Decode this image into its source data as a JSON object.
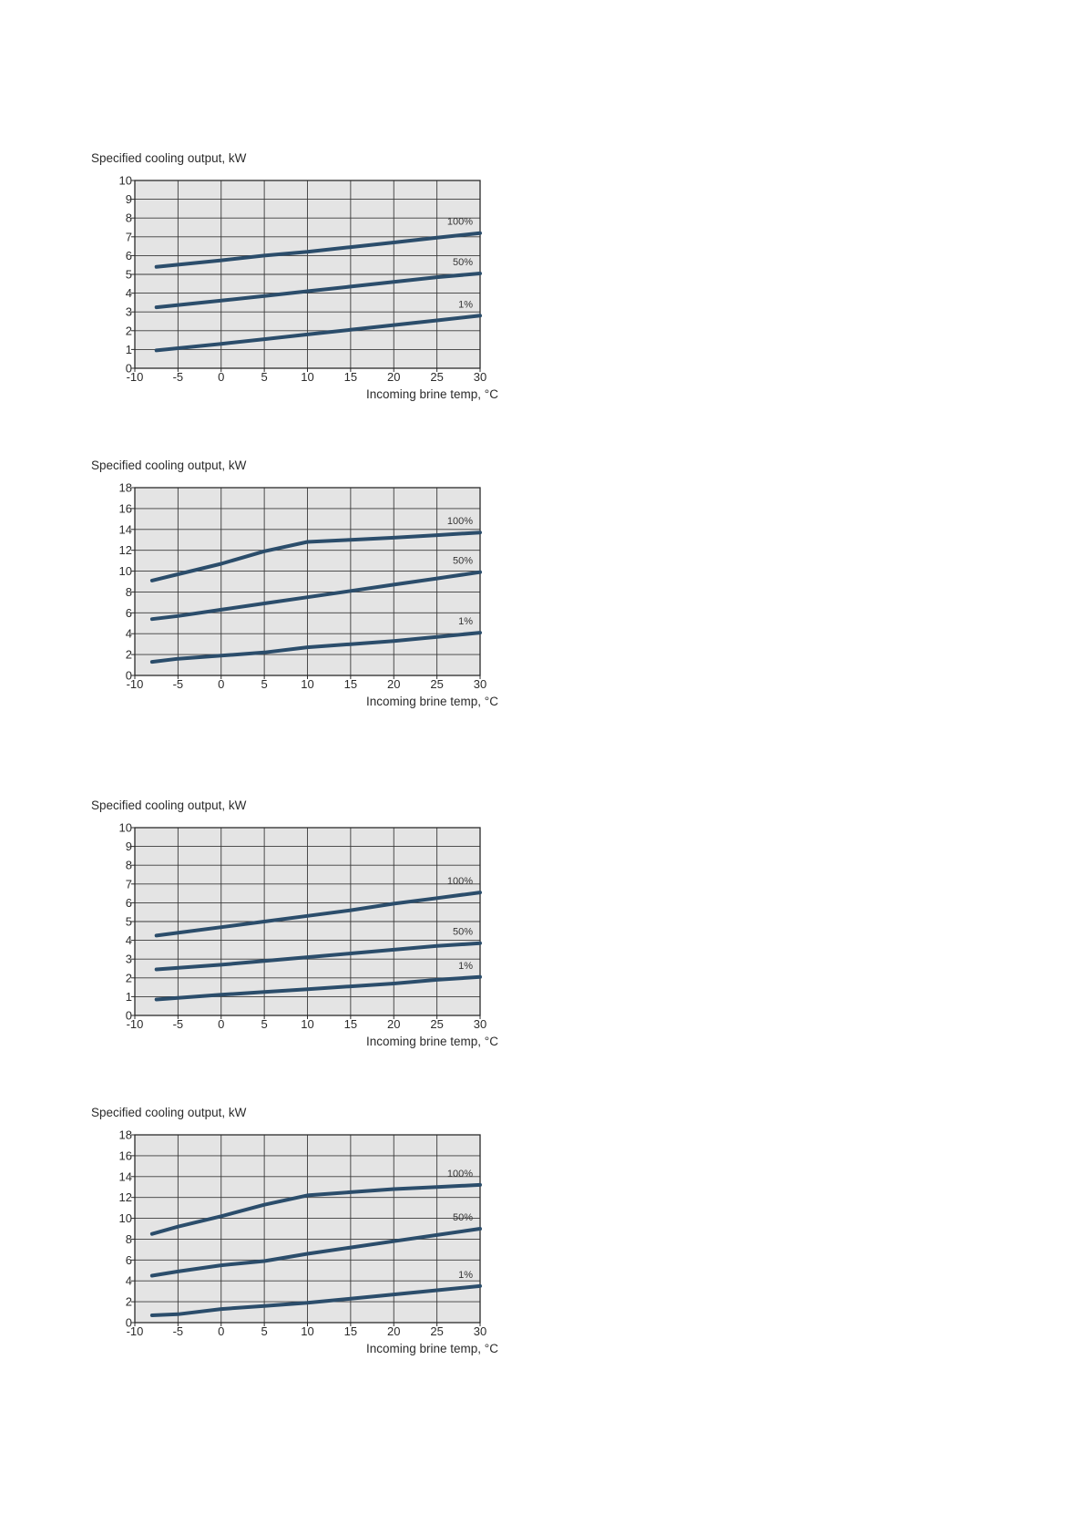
{
  "chart_data": [
    {
      "type": "line",
      "ylabel": "Specified cooling output, kW",
      "xlabel": "Incoming brine temp, °C",
      "xlim": [
        -10,
        30
      ],
      "ylim": [
        0,
        10
      ],
      "xticks": [
        -10,
        -5,
        0,
        5,
        10,
        15,
        20,
        25,
        30
      ],
      "yticks": [
        0,
        1,
        2,
        3,
        4,
        5,
        6,
        7,
        8,
        9,
        10
      ],
      "grid": true,
      "series": [
        {
          "name": "100%",
          "x": [
            -7.5,
            0,
            5,
            10,
            15,
            20,
            25,
            30
          ],
          "y": [
            5.4,
            5.75,
            6.0,
            6.2,
            6.45,
            6.7,
            6.95,
            7.2
          ]
        },
        {
          "name": "50%",
          "x": [
            -7.5,
            0,
            5,
            10,
            15,
            20,
            25,
            30
          ],
          "y": [
            3.25,
            3.6,
            3.85,
            4.1,
            4.35,
            4.6,
            4.85,
            5.05
          ]
        },
        {
          "name": "1%",
          "x": [
            -7.5,
            0,
            5,
            10,
            15,
            20,
            25,
            30
          ],
          "y": [
            0.95,
            1.3,
            1.55,
            1.8,
            2.05,
            2.3,
            2.55,
            2.8
          ]
        }
      ]
    },
    {
      "type": "line",
      "ylabel": "Specified cooling output, kW",
      "xlabel": "Incoming brine temp, °C",
      "xlim": [
        -10,
        30
      ],
      "ylim": [
        0,
        18
      ],
      "xticks": [
        -10,
        -5,
        0,
        5,
        10,
        15,
        20,
        25,
        30
      ],
      "yticks": [
        0,
        2,
        4,
        6,
        8,
        10,
        12,
        14,
        16,
        18
      ],
      "grid": true,
      "series": [
        {
          "name": "100%",
          "x": [
            -8,
            -5,
            0,
            5,
            10,
            15,
            20,
            25,
            30
          ],
          "y": [
            9.1,
            9.7,
            10.7,
            11.9,
            12.8,
            13.0,
            13.2,
            13.45,
            13.7
          ]
        },
        {
          "name": "50%",
          "x": [
            -8,
            -5,
            0,
            5,
            10,
            15,
            20,
            25,
            30
          ],
          "y": [
            5.4,
            5.7,
            6.3,
            6.9,
            7.5,
            8.1,
            8.7,
            9.3,
            9.9
          ]
        },
        {
          "name": "1%",
          "x": [
            -8,
            -5,
            0,
            5,
            10,
            15,
            20,
            25,
            30
          ],
          "y": [
            1.3,
            1.6,
            1.9,
            2.2,
            2.7,
            3.0,
            3.3,
            3.7,
            4.1
          ]
        }
      ]
    },
    {
      "type": "line",
      "ylabel": "Specified cooling output, kW",
      "xlabel": "Incoming brine temp, °C",
      "xlim": [
        -10,
        30
      ],
      "ylim": [
        0,
        10
      ],
      "xticks": [
        -10,
        -5,
        0,
        5,
        10,
        15,
        20,
        25,
        30
      ],
      "yticks": [
        0,
        1,
        2,
        3,
        4,
        5,
        6,
        7,
        8,
        9,
        10
      ],
      "grid": true,
      "series": [
        {
          "name": "100%",
          "x": [
            -7.5,
            0,
            5,
            10,
            15,
            20,
            25,
            30
          ],
          "y": [
            4.25,
            4.7,
            5.0,
            5.3,
            5.6,
            5.95,
            6.25,
            6.55
          ]
        },
        {
          "name": "50%",
          "x": [
            -7.5,
            0,
            5,
            10,
            15,
            20,
            25,
            30
          ],
          "y": [
            2.45,
            2.7,
            2.9,
            3.1,
            3.3,
            3.5,
            3.7,
            3.85
          ]
        },
        {
          "name": "1%",
          "x": [
            -7.5,
            0,
            5,
            10,
            15,
            20,
            25,
            30
          ],
          "y": [
            0.85,
            1.1,
            1.25,
            1.4,
            1.55,
            1.7,
            1.9,
            2.05
          ]
        }
      ]
    },
    {
      "type": "line",
      "ylabel": "Specified cooling output, kW",
      "xlabel": "Incoming brine temp, °C",
      "xlim": [
        -10,
        30
      ],
      "ylim": [
        0,
        18
      ],
      "xticks": [
        -10,
        -5,
        0,
        5,
        10,
        15,
        20,
        25,
        30
      ],
      "yticks": [
        0,
        2,
        4,
        6,
        8,
        10,
        12,
        14,
        16,
        18
      ],
      "grid": true,
      "series": [
        {
          "name": "100%",
          "x": [
            -8,
            -5,
            0,
            5,
            10,
            15,
            20,
            25,
            30
          ],
          "y": [
            8.5,
            9.2,
            10.2,
            11.3,
            12.2,
            12.5,
            12.8,
            13.0,
            13.2
          ]
        },
        {
          "name": "50%",
          "x": [
            -8,
            -5,
            0,
            5,
            10,
            15,
            20,
            25,
            30
          ],
          "y": [
            4.5,
            4.9,
            5.5,
            5.9,
            6.6,
            7.2,
            7.8,
            8.4,
            9.0
          ]
        },
        {
          "name": "1%",
          "x": [
            -8,
            -5,
            0,
            5,
            10,
            15,
            20,
            25,
            30
          ],
          "y": [
            0.7,
            0.8,
            1.3,
            1.6,
            1.9,
            2.3,
            2.7,
            3.1,
            3.5
          ]
        }
      ]
    }
  ],
  "colors": {
    "line": "#2b4d6b",
    "plot_background": "#e4e4e4",
    "grid": "#3a3a3a"
  }
}
